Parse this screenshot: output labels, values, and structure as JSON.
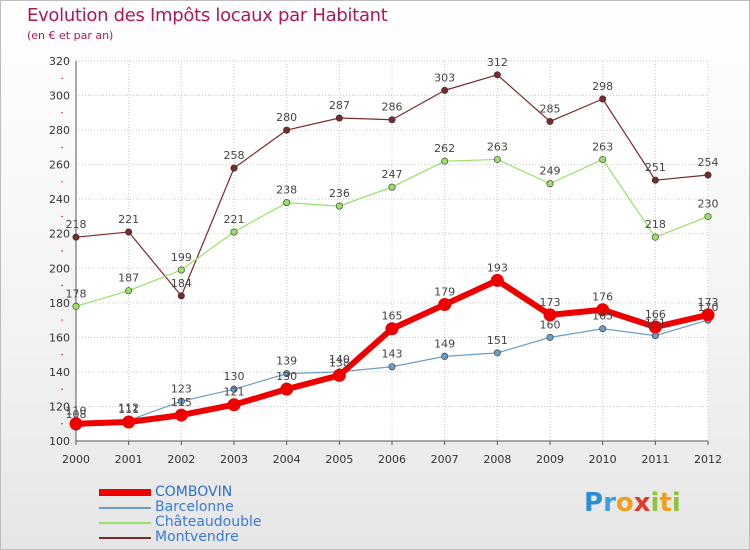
{
  "title": "Evolution des Impôts locaux par Habitant",
  "subtitle": "(en € et par an)",
  "logo": {
    "text": "Proxiti",
    "letters": [
      {
        "ch": "P",
        "color": "#2b8fd6"
      },
      {
        "ch": "r",
        "color": "#3aa0e0"
      },
      {
        "ch": "o",
        "color": "#f0a020"
      },
      {
        "ch": "x",
        "color": "#e23a2a"
      },
      {
        "ch": "i",
        "color": "#8cc63f"
      },
      {
        "ch": "t",
        "color": "#f0a020"
      },
      {
        "ch": "i",
        "color": "#8cc63f"
      }
    ]
  },
  "chart_data": {
    "type": "line",
    "title": "Evolution des Impôts locaux par Habitant",
    "subtitle": "(en € et par an)",
    "xlabel": "",
    "ylabel": "",
    "x": [
      "2000",
      "2001",
      "2002",
      "2003",
      "2004",
      "2005",
      "2006",
      "2007",
      "2008",
      "2009",
      "2010",
      "2011",
      "2012"
    ],
    "ylim": [
      100,
      320
    ],
    "yticks": [
      100,
      120,
      140,
      160,
      180,
      200,
      220,
      240,
      260,
      280,
      300,
      320
    ],
    "grid": true,
    "legend_position": "bottom-left",
    "series": [
      {
        "name": "COMBOVIN",
        "color": "#ee0000",
        "values": [
          110,
          111,
          115,
          121,
          130,
          138,
          165,
          179,
          193,
          173,
          176,
          166,
          173
        ]
      },
      {
        "name": "Barcelonne",
        "color": "#6a9ec8",
        "values": [
          108,
          112,
          123,
          130,
          139,
          140,
          143,
          149,
          151,
          160,
          165,
          161,
          170
        ]
      },
      {
        "name": "Châteaudouble",
        "color": "#99e066",
        "values": [
          178,
          187,
          199,
          221,
          238,
          236,
          247,
          262,
          263,
          249,
          263,
          218,
          230
        ]
      },
      {
        "name": "Montvendre",
        "color": "#7a2a2a",
        "values": [
          218,
          221,
          184,
          258,
          280,
          287,
          286,
          303,
          312,
          285,
          298,
          251,
          254
        ]
      }
    ]
  }
}
